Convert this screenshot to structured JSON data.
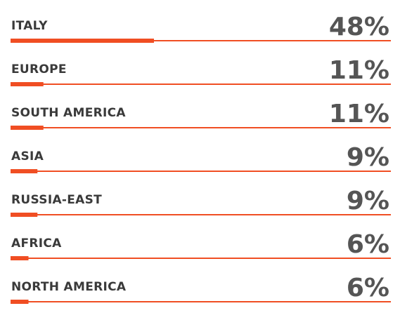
{
  "chart_data": {
    "type": "bar",
    "orientation": "horizontal",
    "color": "#f04e23",
    "categories": [
      "ITALY",
      "EUROPE",
      "SOUTH AMERICA",
      "ASIA",
      "RUSSIA-EAST",
      "AFRICA",
      "NORTH AMERICA"
    ],
    "values": [
      48,
      11,
      11,
      9,
      9,
      6,
      6
    ],
    "value_labels": [
      "48%",
      "11%",
      "11%",
      "9%",
      "9%",
      "6%",
      "6%"
    ]
  }
}
